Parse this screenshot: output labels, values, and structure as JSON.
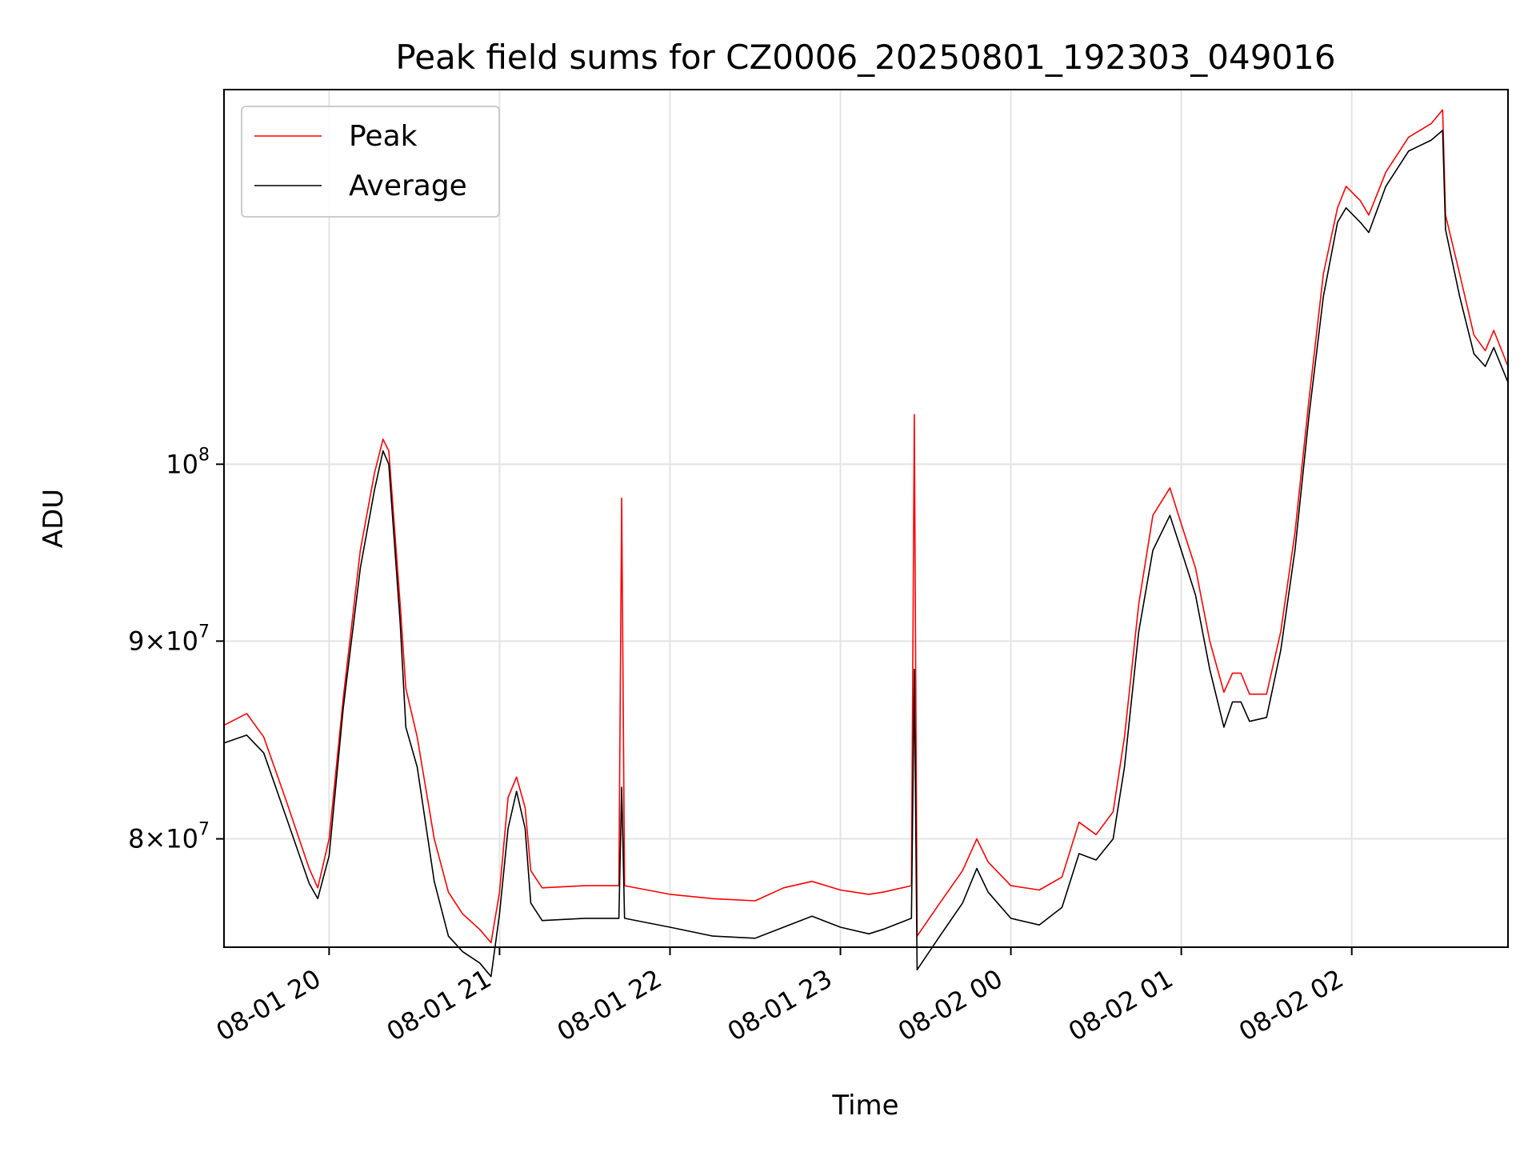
{
  "chart_data": {
    "type": "line",
    "title": "Peak field sums for CZ0006_20250801_192303_049016",
    "xlabel": "Time",
    "ylabel": "ADU",
    "yscale": "log",
    "xlim": [
      "2025-08-01 19:23",
      "2025-08-02 02:55"
    ],
    "ylim": [
      75000000,
      125000000
    ],
    "grid": true,
    "legend_position": "top-left",
    "x_ticks": [
      {
        "t": "2025-08-01 20:00",
        "label": "08-01 20"
      },
      {
        "t": "2025-08-01 21:00",
        "label": "08-01 21"
      },
      {
        "t": "2025-08-01 22:00",
        "label": "08-01 22"
      },
      {
        "t": "2025-08-01 23:00",
        "label": "08-01 23"
      },
      {
        "t": "2025-08-02 00:00",
        "label": "08-02 00"
      },
      {
        "t": "2025-08-02 01:00",
        "label": "08-02 01"
      },
      {
        "t": "2025-08-02 02:00",
        "label": "08-02 02"
      }
    ],
    "y_ticks": [
      {
        "v": 80000000,
        "base": "8",
        "exp": "7"
      },
      {
        "v": 90000000,
        "base": "9",
        "exp": "7"
      },
      {
        "v": 100000000,
        "base": "",
        "exp": "8"
      }
    ],
    "series": [
      {
        "name": "Peak",
        "color": "#ff0000",
        "points": [
          [
            "2025-08-01 19:23",
            85600000
          ],
          [
            "2025-08-01 19:31",
            86200000
          ],
          [
            "2025-08-01 19:37",
            85000000
          ],
          [
            "2025-08-01 19:45",
            81800000
          ],
          [
            "2025-08-01 19:53",
            78600000
          ],
          [
            "2025-08-01 19:56",
            77700000
          ],
          [
            "2025-08-01 20:00",
            80000000
          ],
          [
            "2025-08-01 20:05",
            87000000
          ],
          [
            "2025-08-01 20:11",
            95000000
          ],
          [
            "2025-08-01 20:16",
            99500000
          ],
          [
            "2025-08-01 20:19",
            101500000
          ],
          [
            "2025-08-01 20:21",
            100800000
          ],
          [
            "2025-08-01 20:25",
            92000000
          ],
          [
            "2025-08-01 20:27",
            87500000
          ],
          [
            "2025-08-01 20:31",
            85000000
          ],
          [
            "2025-08-01 20:37",
            80000000
          ],
          [
            "2025-08-01 20:42",
            77500000
          ],
          [
            "2025-08-01 20:47",
            76500000
          ],
          [
            "2025-08-01 20:53",
            75800000
          ],
          [
            "2025-08-01 20:57",
            75200000
          ],
          [
            "2025-08-01 21:00",
            77500000
          ],
          [
            "2025-08-01 21:03",
            82000000
          ],
          [
            "2025-08-01 21:06",
            83000000
          ],
          [
            "2025-08-01 21:09",
            81500000
          ],
          [
            "2025-08-01 21:11",
            78500000
          ],
          [
            "2025-08-01 21:15",
            77700000
          ],
          [
            "2025-08-01 21:30",
            77800000
          ],
          [
            "2025-08-01 21:42",
            77800000
          ],
          [
            "2025-08-01 21:43",
            98000000
          ],
          [
            "2025-08-01 21:44",
            77800000
          ],
          [
            "2025-08-01 22:00",
            77400000
          ],
          [
            "2025-08-01 22:15",
            77200000
          ],
          [
            "2025-08-01 22:30",
            77100000
          ],
          [
            "2025-08-01 22:40",
            77700000
          ],
          [
            "2025-08-01 22:50",
            78000000
          ],
          [
            "2025-08-01 23:00",
            77600000
          ],
          [
            "2025-08-01 23:10",
            77400000
          ],
          [
            "2025-08-01 23:15",
            77500000
          ],
          [
            "2025-08-01 23:25",
            77800000
          ],
          [
            "2025-08-01 23:26",
            103000000
          ],
          [
            "2025-08-01 23:27",
            75500000
          ],
          [
            "2025-08-01 23:35",
            77000000
          ],
          [
            "2025-08-01 23:43",
            78500000
          ],
          [
            "2025-08-01 23:48",
            80000000
          ],
          [
            "2025-08-01 23:52",
            78900000
          ],
          [
            "2025-08-02 00:00",
            77800000
          ],
          [
            "2025-08-02 00:10",
            77600000
          ],
          [
            "2025-08-02 00:18",
            78200000
          ],
          [
            "2025-08-02 00:24",
            80800000
          ],
          [
            "2025-08-02 00:30",
            80200000
          ],
          [
            "2025-08-02 00:36",
            81300000
          ],
          [
            "2025-08-02 00:40",
            85000000
          ],
          [
            "2025-08-02 00:45",
            92000000
          ],
          [
            "2025-08-02 00:50",
            97000000
          ],
          [
            "2025-08-02 00:56",
            98600000
          ],
          [
            "2025-08-02 01:00",
            96500000
          ],
          [
            "2025-08-02 01:05",
            94000000
          ],
          [
            "2025-08-02 01:10",
            90000000
          ],
          [
            "2025-08-02 01:15",
            87300000
          ],
          [
            "2025-08-02 01:18",
            88300000
          ],
          [
            "2025-08-02 01:21",
            88300000
          ],
          [
            "2025-08-02 01:24",
            87200000
          ],
          [
            "2025-08-02 01:30",
            87200000
          ],
          [
            "2025-08-02 01:35",
            90500000
          ],
          [
            "2025-08-02 01:40",
            96000000
          ],
          [
            "2025-08-02 01:45",
            104000000
          ],
          [
            "2025-08-02 01:50",
            112000000
          ],
          [
            "2025-08-02 01:55",
            116500000
          ],
          [
            "2025-08-02 01:58",
            118000000
          ],
          [
            "2025-08-02 02:03",
            117000000
          ],
          [
            "2025-08-02 02:06",
            116000000
          ],
          [
            "2025-08-02 02:12",
            119000000
          ],
          [
            "2025-08-02 02:20",
            121500000
          ],
          [
            "2025-08-02 02:28",
            122500000
          ],
          [
            "2025-08-02 02:32",
            123500000
          ],
          [
            "2025-08-02 02:33",
            116000000
          ],
          [
            "2025-08-02 02:38",
            112000000
          ],
          [
            "2025-08-02 02:43",
            108000000
          ],
          [
            "2025-08-02 02:47",
            107000000
          ],
          [
            "2025-08-02 02:50",
            108300000
          ],
          [
            "2025-08-02 02:55",
            106000000
          ]
        ]
      },
      {
        "name": "Average",
        "color": "#000000",
        "points": [
          [
            "2025-08-01 19:23",
            84700000
          ],
          [
            "2025-08-01 19:31",
            85100000
          ],
          [
            "2025-08-01 19:37",
            84200000
          ],
          [
            "2025-08-01 19:45",
            81000000
          ],
          [
            "2025-08-01 19:53",
            77900000
          ],
          [
            "2025-08-01 19:56",
            77200000
          ],
          [
            "2025-08-01 20:00",
            79200000
          ],
          [
            "2025-08-01 20:05",
            86500000
          ],
          [
            "2025-08-01 20:11",
            94000000
          ],
          [
            "2025-08-01 20:16",
            98500000
          ],
          [
            "2025-08-01 20:19",
            100800000
          ],
          [
            "2025-08-01 20:21",
            100000000
          ],
          [
            "2025-08-01 20:25",
            91000000
          ],
          [
            "2025-08-01 20:27",
            85500000
          ],
          [
            "2025-08-01 20:31",
            83500000
          ],
          [
            "2025-08-01 20:37",
            78000000
          ],
          [
            "2025-08-01 20:42",
            75500000
          ],
          [
            "2025-08-01 20:47",
            74800000
          ],
          [
            "2025-08-01 20:53",
            74300000
          ],
          [
            "2025-08-01 20:57",
            73700000
          ],
          [
            "2025-08-01 21:00",
            76500000
          ],
          [
            "2025-08-01 21:03",
            80500000
          ],
          [
            "2025-08-01 21:06",
            82300000
          ],
          [
            "2025-08-01 21:09",
            80500000
          ],
          [
            "2025-08-01 21:11",
            77000000
          ],
          [
            "2025-08-01 21:15",
            76200000
          ],
          [
            "2025-08-01 21:30",
            76300000
          ],
          [
            "2025-08-01 21:42",
            76300000
          ],
          [
            "2025-08-01 21:43",
            82500000
          ],
          [
            "2025-08-01 21:44",
            76300000
          ],
          [
            "2025-08-01 22:00",
            75900000
          ],
          [
            "2025-08-01 22:15",
            75500000
          ],
          [
            "2025-08-01 22:30",
            75400000
          ],
          [
            "2025-08-01 22:40",
            75900000
          ],
          [
            "2025-08-01 22:50",
            76400000
          ],
          [
            "2025-08-01 23:00",
            75900000
          ],
          [
            "2025-08-01 23:10",
            75600000
          ],
          [
            "2025-08-01 23:15",
            75800000
          ],
          [
            "2025-08-01 23:25",
            76300000
          ],
          [
            "2025-08-01 23:26",
            88500000
          ],
          [
            "2025-08-01 23:27",
            74000000
          ],
          [
            "2025-08-01 23:35",
            75500000
          ],
          [
            "2025-08-01 23:43",
            77000000
          ],
          [
            "2025-08-01 23:48",
            78600000
          ],
          [
            "2025-08-01 23:52",
            77500000
          ],
          [
            "2025-08-02 00:00",
            76300000
          ],
          [
            "2025-08-02 00:10",
            76000000
          ],
          [
            "2025-08-02 00:18",
            76800000
          ],
          [
            "2025-08-02 00:24",
            79300000
          ],
          [
            "2025-08-02 00:30",
            79000000
          ],
          [
            "2025-08-02 00:36",
            80000000
          ],
          [
            "2025-08-02 00:40",
            83500000
          ],
          [
            "2025-08-02 00:45",
            90500000
          ],
          [
            "2025-08-02 00:50",
            95000000
          ],
          [
            "2025-08-02 00:56",
            97000000
          ],
          [
            "2025-08-02 01:00",
            95000000
          ],
          [
            "2025-08-02 01:05",
            92500000
          ],
          [
            "2025-08-02 01:10",
            88500000
          ],
          [
            "2025-08-02 01:15",
            85500000
          ],
          [
            "2025-08-02 01:18",
            86800000
          ],
          [
            "2025-08-02 01:21",
            86800000
          ],
          [
            "2025-08-02 01:24",
            85800000
          ],
          [
            "2025-08-02 01:30",
            86000000
          ],
          [
            "2025-08-02 01:35",
            89500000
          ],
          [
            "2025-08-02 01:40",
            95000000
          ],
          [
            "2025-08-02 01:45",
            103000000
          ],
          [
            "2025-08-02 01:50",
            110500000
          ],
          [
            "2025-08-02 01:55",
            115500000
          ],
          [
            "2025-08-02 01:58",
            116500000
          ],
          [
            "2025-08-02 02:03",
            115500000
          ],
          [
            "2025-08-02 02:06",
            114800000
          ],
          [
            "2025-08-02 02:12",
            118000000
          ],
          [
            "2025-08-02 02:20",
            120500000
          ],
          [
            "2025-08-02 02:28",
            121300000
          ],
          [
            "2025-08-02 02:32",
            122000000
          ],
          [
            "2025-08-02 02:33",
            115000000
          ],
          [
            "2025-08-02 02:38",
            110500000
          ],
          [
            "2025-08-02 02:43",
            106800000
          ],
          [
            "2025-08-02 02:47",
            106000000
          ],
          [
            "2025-08-02 02:50",
            107200000
          ],
          [
            "2025-08-02 02:55",
            105000000
          ]
        ]
      }
    ]
  }
}
